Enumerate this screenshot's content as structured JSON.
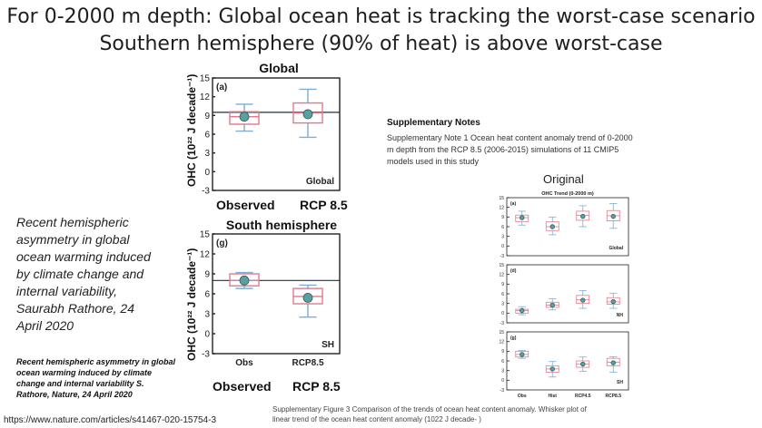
{
  "header": {
    "title_line1": "For 0-2000 m depth: Global ocean heat is tracking the worst-case scenario",
    "title_line2": "Southern hemisphere (90% of heat) is above worst-case"
  },
  "left_text": {
    "citation_lines": [
      "Recent hemispheric",
      "asymmetry in global",
      "ocean warming induced",
      "by climate change and",
      "internal variability,",
      "Saurabh Rathore, 24",
      "April 2020"
    ],
    "small_citation_lines": [
      "Recent hemispheric asymmetry in global",
      "ocean warming induced by climate",
      "change and internal variability S.",
      "Rathore, Nature, 24 April 2020"
    ],
    "url": "https://www.nature.com/articles/s41467-020-15754-3"
  },
  "supplementary": {
    "heading": "Supplementary Notes",
    "text_lines": [
      "Supplementary Note 1 Ocean heat content anomaly trend of 0-2000",
      "m depth from the RCP 8.5 (2006-2015) simulations of 11 CMIP5",
      "models used in this study"
    ],
    "original_label": "Original",
    "figure_title": "OHC Trend (0-2000 m)",
    "caption_lines": [
      "Supplementary Figure 3 Comparison of the trends of ocean heat content anomaly. Whisker plot of",
      "linear trend of the ocean heat content anomaly (1022 J decade- )"
    ]
  },
  "colors": {
    "box": "#e07a8a",
    "whisker": "#7aaed4",
    "marker_fill": "#5aa0a0",
    "marker_edge": "#2f5f5f",
    "reference_line": "#1f2f4f"
  },
  "chart_data": [
    {
      "type": "box",
      "title": "Global",
      "panel_label": "(a)",
      "region_label": "Global",
      "ylabel": "OHC (10²² J decade⁻¹)",
      "ylim": [
        -3,
        15
      ],
      "yticks": [
        -3,
        0,
        3,
        6,
        9,
        12,
        15
      ],
      "categories": [
        "Observed",
        "RCP 8.5"
      ],
      "boxes": [
        {
          "category": "Observed",
          "whisker_low": 6.5,
          "q1": 7.6,
          "median": 8.8,
          "q3": 9.6,
          "whisker_high": 10.8,
          "mean": 8.8
        },
        {
          "category": "RCP 8.5",
          "whisker_low": 5.5,
          "q1": 7.8,
          "median": 9.4,
          "q3": 11.0,
          "whisker_high": 13.2,
          "mean": 9.2
        }
      ],
      "reference_line": 9.5
    },
    {
      "type": "box",
      "title": "South hemisphere",
      "panel_label": "(g)",
      "region_label": "SH",
      "ylabel": "OHC (10²² J decade⁻¹)",
      "ylim": [
        -3,
        15
      ],
      "yticks": [
        -3,
        0,
        3,
        6,
        9,
        12,
        15
      ],
      "categories": [
        "Obs",
        "RCP8.5"
      ],
      "boxes": [
        {
          "category": "Obs",
          "whisker_low": 6.8,
          "q1": 7.2,
          "median": 8.0,
          "q3": 9.0,
          "whisker_high": 9.2,
          "mean": 8.0
        },
        {
          "category": "RCP8.5",
          "whisker_low": 2.5,
          "q1": 4.5,
          "median": 5.6,
          "q3": 6.8,
          "whisker_high": 7.3,
          "mean": 5.4
        }
      ],
      "reference_line": 8.0,
      "outer_labels": [
        "Observed",
        "RCP 8.5"
      ]
    },
    {
      "type": "box",
      "title": "OHC Trend (0-2000 m)",
      "panel_label": "(a)",
      "region_label": "Global",
      "ylim": [
        -3,
        15
      ],
      "yticks": [
        -3,
        0,
        3,
        6,
        9,
        12,
        15
      ],
      "categories": [
        "Obs",
        "Hist",
        "RCP4.5",
        "RCP8.5"
      ],
      "boxes": [
        {
          "category": "Obs",
          "whisker_low": 6.5,
          "q1": 7.6,
          "median": 8.8,
          "q3": 9.6,
          "whisker_high": 10.8,
          "mean": 8.8
        },
        {
          "category": "Hist",
          "whisker_low": 3.5,
          "q1": 4.8,
          "median": 6.0,
          "q3": 7.5,
          "whisker_high": 9.0,
          "mean": 6.0
        },
        {
          "category": "RCP4.5",
          "whisker_low": 6.0,
          "q1": 8.0,
          "median": 9.5,
          "q3": 10.8,
          "whisker_high": 12.5,
          "mean": 9.2
        },
        {
          "category": "RCP8.5",
          "whisker_low": 5.5,
          "q1": 7.8,
          "median": 9.4,
          "q3": 11.0,
          "whisker_high": 13.2,
          "mean": 9.2
        }
      ]
    },
    {
      "type": "box",
      "panel_label": "(d)",
      "region_label": "NH",
      "ylim": [
        -3,
        15
      ],
      "yticks": [
        -3,
        0,
        3,
        6,
        9,
        12,
        15
      ],
      "categories": [
        "Obs",
        "Hist",
        "RCP4.5",
        "RCP8.5"
      ],
      "boxes": [
        {
          "category": "Obs",
          "whisker_low": -0.5,
          "q1": 0.0,
          "median": 0.8,
          "q3": 1.2,
          "whisker_high": 2.0,
          "mean": 0.8
        },
        {
          "category": "Hist",
          "whisker_low": 1.0,
          "q1": 1.8,
          "median": 2.5,
          "q3": 3.4,
          "whisker_high": 4.5,
          "mean": 2.5
        },
        {
          "category": "RCP4.5",
          "whisker_low": 1.5,
          "q1": 3.0,
          "median": 4.2,
          "q3": 5.5,
          "whisker_high": 7.0,
          "mean": 4.0
        },
        {
          "category": "RCP8.5",
          "whisker_low": 1.5,
          "q1": 2.8,
          "median": 3.5,
          "q3": 4.8,
          "whisker_high": 6.2,
          "mean": 3.6
        }
      ]
    },
    {
      "type": "box",
      "panel_label": "(g)",
      "region_label": "SH",
      "ylim": [
        -3,
        15
      ],
      "yticks": [
        -3,
        0,
        3,
        6,
        9,
        12,
        15
      ],
      "categories": [
        "Obs",
        "Hist",
        "RCP4.5",
        "RCP8.5"
      ],
      "boxes": [
        {
          "category": "Obs",
          "whisker_low": 6.8,
          "q1": 7.2,
          "median": 8.0,
          "q3": 9.0,
          "whisker_high": 9.2,
          "mean": 8.0
        },
        {
          "category": "Hist",
          "whisker_low": 1.0,
          "q1": 2.5,
          "median": 3.5,
          "q3": 4.5,
          "whisker_high": 5.8,
          "mean": 3.5
        },
        {
          "category": "RCP4.5",
          "whisker_low": 2.8,
          "q1": 4.0,
          "median": 5.0,
          "q3": 6.0,
          "whisker_high": 7.2,
          "mean": 5.0
        },
        {
          "category": "RCP8.5",
          "whisker_low": 2.5,
          "q1": 4.5,
          "median": 5.6,
          "q3": 6.8,
          "whisker_high": 7.3,
          "mean": 5.4
        }
      ]
    }
  ]
}
